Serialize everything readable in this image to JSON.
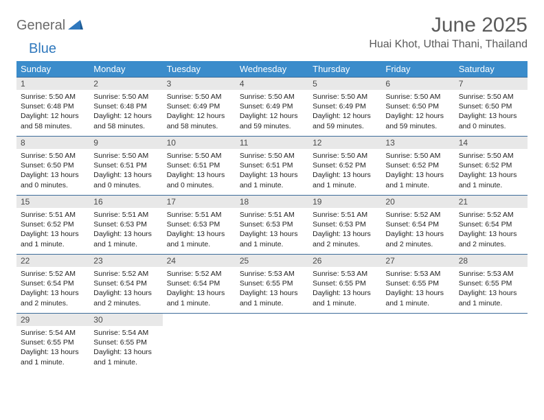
{
  "logo": {
    "text1": "General",
    "text2": "Blue"
  },
  "title": "June 2025",
  "location": "Huai Khot, Uthai Thani, Thailand",
  "colors": {
    "header_bg": "#3b8ccb",
    "header_text": "#ffffff",
    "row_border": "#3b6b99",
    "daynum_bg": "#e8e8e8",
    "logo_gray": "#6a6a6a",
    "logo_blue": "#2f78bd",
    "title_color": "#5a5a5a"
  },
  "weekdays": [
    "Sunday",
    "Monday",
    "Tuesday",
    "Wednesday",
    "Thursday",
    "Friday",
    "Saturday"
  ],
  "weeks": [
    [
      {
        "n": "1",
        "sr": "5:50 AM",
        "ss": "6:48 PM",
        "dl": "12 hours and 58 minutes."
      },
      {
        "n": "2",
        "sr": "5:50 AM",
        "ss": "6:48 PM",
        "dl": "12 hours and 58 minutes."
      },
      {
        "n": "3",
        "sr": "5:50 AM",
        "ss": "6:49 PM",
        "dl": "12 hours and 58 minutes."
      },
      {
        "n": "4",
        "sr": "5:50 AM",
        "ss": "6:49 PM",
        "dl": "12 hours and 59 minutes."
      },
      {
        "n": "5",
        "sr": "5:50 AM",
        "ss": "6:49 PM",
        "dl": "12 hours and 59 minutes."
      },
      {
        "n": "6",
        "sr": "5:50 AM",
        "ss": "6:50 PM",
        "dl": "12 hours and 59 minutes."
      },
      {
        "n": "7",
        "sr": "5:50 AM",
        "ss": "6:50 PM",
        "dl": "13 hours and 0 minutes."
      }
    ],
    [
      {
        "n": "8",
        "sr": "5:50 AM",
        "ss": "6:50 PM",
        "dl": "13 hours and 0 minutes."
      },
      {
        "n": "9",
        "sr": "5:50 AM",
        "ss": "6:51 PM",
        "dl": "13 hours and 0 minutes."
      },
      {
        "n": "10",
        "sr": "5:50 AM",
        "ss": "6:51 PM",
        "dl": "13 hours and 0 minutes."
      },
      {
        "n": "11",
        "sr": "5:50 AM",
        "ss": "6:51 PM",
        "dl": "13 hours and 1 minute."
      },
      {
        "n": "12",
        "sr": "5:50 AM",
        "ss": "6:52 PM",
        "dl": "13 hours and 1 minute."
      },
      {
        "n": "13",
        "sr": "5:50 AM",
        "ss": "6:52 PM",
        "dl": "13 hours and 1 minute."
      },
      {
        "n": "14",
        "sr": "5:50 AM",
        "ss": "6:52 PM",
        "dl": "13 hours and 1 minute."
      }
    ],
    [
      {
        "n": "15",
        "sr": "5:51 AM",
        "ss": "6:52 PM",
        "dl": "13 hours and 1 minute."
      },
      {
        "n": "16",
        "sr": "5:51 AM",
        "ss": "6:53 PM",
        "dl": "13 hours and 1 minute."
      },
      {
        "n": "17",
        "sr": "5:51 AM",
        "ss": "6:53 PM",
        "dl": "13 hours and 1 minute."
      },
      {
        "n": "18",
        "sr": "5:51 AM",
        "ss": "6:53 PM",
        "dl": "13 hours and 1 minute."
      },
      {
        "n": "19",
        "sr": "5:51 AM",
        "ss": "6:53 PM",
        "dl": "13 hours and 2 minutes."
      },
      {
        "n": "20",
        "sr": "5:52 AM",
        "ss": "6:54 PM",
        "dl": "13 hours and 2 minutes."
      },
      {
        "n": "21",
        "sr": "5:52 AM",
        "ss": "6:54 PM",
        "dl": "13 hours and 2 minutes."
      }
    ],
    [
      {
        "n": "22",
        "sr": "5:52 AM",
        "ss": "6:54 PM",
        "dl": "13 hours and 2 minutes."
      },
      {
        "n": "23",
        "sr": "5:52 AM",
        "ss": "6:54 PM",
        "dl": "13 hours and 2 minutes."
      },
      {
        "n": "24",
        "sr": "5:52 AM",
        "ss": "6:54 PM",
        "dl": "13 hours and 1 minute."
      },
      {
        "n": "25",
        "sr": "5:53 AM",
        "ss": "6:55 PM",
        "dl": "13 hours and 1 minute."
      },
      {
        "n": "26",
        "sr": "5:53 AM",
        "ss": "6:55 PM",
        "dl": "13 hours and 1 minute."
      },
      {
        "n": "27",
        "sr": "5:53 AM",
        "ss": "6:55 PM",
        "dl": "13 hours and 1 minute."
      },
      {
        "n": "28",
        "sr": "5:53 AM",
        "ss": "6:55 PM",
        "dl": "13 hours and 1 minute."
      }
    ],
    [
      {
        "n": "29",
        "sr": "5:54 AM",
        "ss": "6:55 PM",
        "dl": "13 hours and 1 minute."
      },
      {
        "n": "30",
        "sr": "5:54 AM",
        "ss": "6:55 PM",
        "dl": "13 hours and 1 minute."
      },
      null,
      null,
      null,
      null,
      null
    ]
  ],
  "labels": {
    "sunrise": "Sunrise:",
    "sunset": "Sunset:",
    "daylight": "Daylight:"
  }
}
